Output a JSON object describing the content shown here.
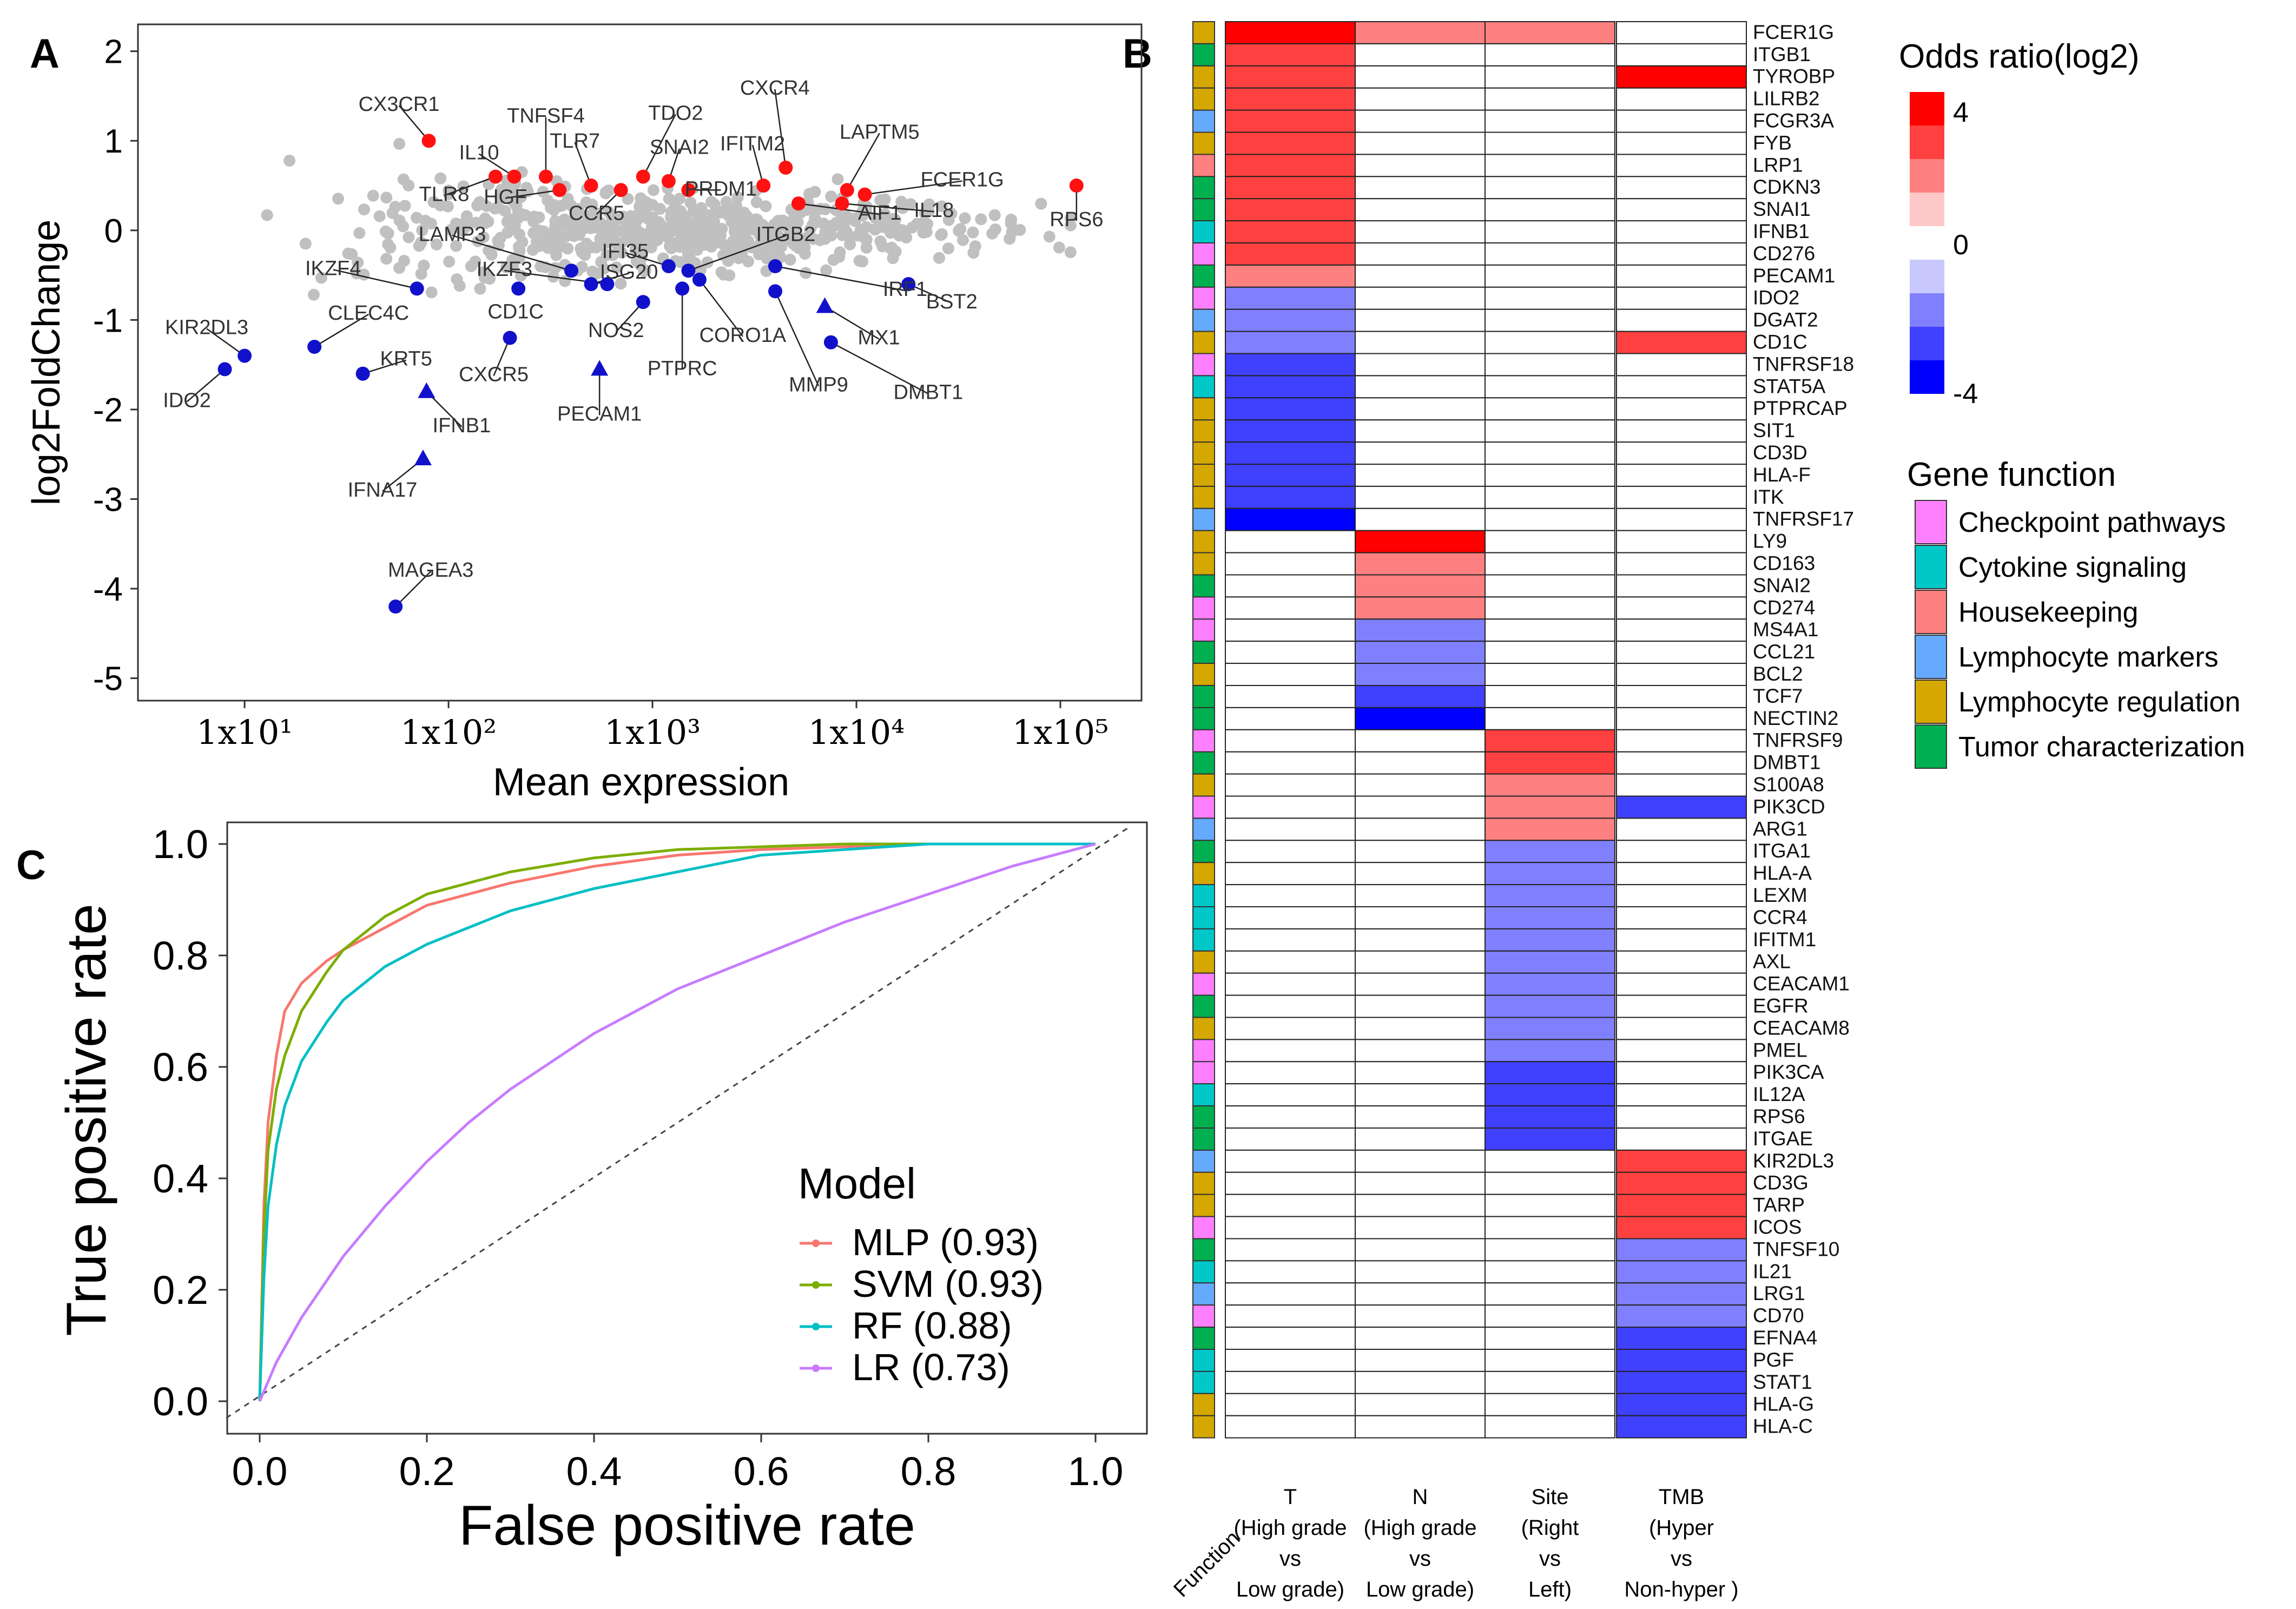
{
  "panels": {
    "A": "A",
    "B": "B",
    "C": "C"
  },
  "palette": {
    "grey": "#c0c0c0",
    "red": "#ff1111",
    "blue": "#1111cc",
    "mlp": "#f8766d",
    "svm": "#7cae00",
    "rf": "#00bfc4",
    "lr": "#c77cff",
    "checkpoint": "#ff80ff",
    "cytokine": "#00c8c8",
    "housekeeping": "#ff8080",
    "lymph_markers": "#66aaff",
    "lymph_regulation": "#d4a800",
    "tumor": "#00b050",
    "hm_pos": [
      "#ffc8c8",
      "#ff8080",
      "#ff4040",
      "#ff0000"
    ],
    "hm_neg": [
      "#c8c8ff",
      "#8080ff",
      "#4040ff",
      "#0000ff"
    ]
  },
  "chart_data": [
    {
      "id": "A",
      "type": "scatter",
      "title": "",
      "xlabel": "Mean expression",
      "ylabel": "log2FoldChange",
      "xscale": "log10",
      "xlim": [
        3,
        250000
      ],
      "ylim": [
        -5.25,
        2.3
      ],
      "xticks": [
        10,
        100,
        1000,
        10000,
        100000
      ],
      "xticklabels": [
        "1x10¹",
        "1x10²",
        "1x10³",
        "1x10⁴",
        "1x10⁵"
      ],
      "yticks": [
        2,
        1,
        0,
        -1,
        -2,
        -3,
        -4,
        -5
      ],
      "yticklabels": [
        "2",
        "1",
        "0",
        "-1",
        "-2",
        "-3",
        "-4",
        "-5"
      ],
      "background_note": "grey points: remaining genes (not significant)",
      "points": [
        {
          "label": "CX3CR1",
          "x": 80,
          "y": 1.0,
          "color": "red",
          "shape": "circle"
        },
        {
          "label": "TNFSF4",
          "x": 300,
          "y": 0.6,
          "color": "red",
          "shape": "circle"
        },
        {
          "label": "IL10",
          "x": 210,
          "y": 0.6,
          "color": "red",
          "shape": "circle"
        },
        {
          "label": "TLR8",
          "x": 170,
          "y": 0.6,
          "color": "red",
          "shape": "circle"
        },
        {
          "label": "TLR7",
          "x": 500,
          "y": 0.5,
          "color": "red",
          "shape": "circle"
        },
        {
          "label": "HGF",
          "x": 350,
          "y": 0.45,
          "color": "red",
          "shape": "circle"
        },
        {
          "label": "TDO2",
          "x": 900,
          "y": 0.6,
          "color": "red",
          "shape": "circle"
        },
        {
          "label": "SNAI2",
          "x": 1200,
          "y": 0.55,
          "color": "red",
          "shape": "circle"
        },
        {
          "label": "CCR5",
          "x": 700,
          "y": 0.45,
          "color": "red",
          "shape": "circle"
        },
        {
          "label": "PRDM1",
          "x": 1500,
          "y": 0.45,
          "color": "red",
          "shape": "circle"
        },
        {
          "label": "CXCR4",
          "x": 4500,
          "y": 0.7,
          "color": "red",
          "shape": "circle"
        },
        {
          "label": "IFITM2",
          "x": 3500,
          "y": 0.5,
          "color": "red",
          "shape": "circle"
        },
        {
          "label": "LAPTM5",
          "x": 9000,
          "y": 0.45,
          "color": "red",
          "shape": "circle"
        },
        {
          "label": "AIF1",
          "x": 5200,
          "y": 0.3,
          "color": "red",
          "shape": "circle"
        },
        {
          "label": "FCER1G",
          "x": 11000,
          "y": 0.4,
          "color": "red",
          "shape": "circle"
        },
        {
          "label": "IL18",
          "x": 8500,
          "y": 0.3,
          "color": "red",
          "shape": "circle"
        },
        {
          "label": "RPS6",
          "x": 120000,
          "y": 0.5,
          "color": "red",
          "shape": "circle"
        },
        {
          "label": "LAMP3",
          "x": 400,
          "y": -0.45,
          "color": "blue",
          "shape": "circle"
        },
        {
          "label": "IKZF3",
          "x": 600,
          "y": -0.6,
          "color": "blue",
          "shape": "circle"
        },
        {
          "label": "IFI35",
          "x": 1200,
          "y": -0.4,
          "color": "blue",
          "shape": "circle"
        },
        {
          "label": "ITGB2",
          "x": 1500,
          "y": -0.45,
          "color": "blue",
          "shape": "circle"
        },
        {
          "label": "IKZF4",
          "x": 70,
          "y": -0.65,
          "color": "blue",
          "shape": "circle"
        },
        {
          "label": "CD1C",
          "x": 220,
          "y": -0.65,
          "color": "blue",
          "shape": "circle"
        },
        {
          "label": "ISG20",
          "x": 500,
          "y": -0.6,
          "color": "blue",
          "shape": "circle"
        },
        {
          "label": "NOS2",
          "x": 900,
          "y": -0.8,
          "color": "blue",
          "shape": "circle"
        },
        {
          "label": "CORO1A",
          "x": 1700,
          "y": -0.55,
          "color": "blue",
          "shape": "circle"
        },
        {
          "label": "IRF1",
          "x": 4000,
          "y": -0.4,
          "color": "blue",
          "shape": "circle"
        },
        {
          "label": "BST2",
          "x": 18000,
          "y": -0.6,
          "color": "blue",
          "shape": "circle"
        },
        {
          "label": "PTPRC",
          "x": 1400,
          "y": -0.65,
          "color": "blue",
          "shape": "circle"
        },
        {
          "label": "MMP9",
          "x": 4000,
          "y": -0.68,
          "color": "blue",
          "shape": "circle"
        },
        {
          "label": "MX1",
          "x": 7000,
          "y": -0.85,
          "color": "blue",
          "shape": "triangle"
        },
        {
          "label": "DMBT1",
          "x": 7500,
          "y": -1.25,
          "color": "blue",
          "shape": "circle"
        },
        {
          "label": "KIR2DL3",
          "x": 10,
          "y": -1.4,
          "color": "blue",
          "shape": "circle"
        },
        {
          "label": "IDO2",
          "x": 8,
          "y": -1.55,
          "color": "blue",
          "shape": "circle"
        },
        {
          "label": "CLEC4C",
          "x": 22,
          "y": -1.3,
          "color": "blue",
          "shape": "circle"
        },
        {
          "label": "KRT5",
          "x": 38,
          "y": -1.6,
          "color": "blue",
          "shape": "circle"
        },
        {
          "label": "CXCR5",
          "x": 200,
          "y": -1.2,
          "color": "blue",
          "shape": "circle"
        },
        {
          "label": "IFNB1",
          "x": 78,
          "y": -1.8,
          "color": "blue",
          "shape": "triangle"
        },
        {
          "label": "PECAM1",
          "x": 550,
          "y": -1.55,
          "color": "blue",
          "shape": "triangle"
        },
        {
          "label": "IFNA17",
          "x": 75,
          "y": -2.55,
          "color": "blue",
          "shape": "triangle"
        },
        {
          "label": "MAGEA3",
          "x": 55,
          "y": -4.2,
          "color": "blue",
          "shape": "circle"
        }
      ]
    },
    {
      "id": "B",
      "type": "heatmap",
      "title": "",
      "value_unit": "Odds ratio (log2), binned",
      "columns": [
        "T (High grade vs Low grade)",
        "N (High grade vs Low grade)",
        "Site (Right vs Left)",
        "TMB (Hyper vs Non-hyper )"
      ],
      "column_label_lines": [
        [
          "T",
          "(High grade",
          "vs",
          "Low grade)"
        ],
        [
          "N",
          "(High grade",
          "vs",
          "Low grade)"
        ],
        [
          "Site",
          "(Right",
          "vs",
          "Left)"
        ],
        [
          "TMB",
          "(Hyper",
          "vs",
          "Non-hyper )"
        ]
      ],
      "function_column_label": "Function",
      "genes": [
        "FCER1G",
        "ITGB1",
        "TYROBP",
        "LILRB2",
        "FCGR3A",
        "FYB",
        "LRP1",
        "CDKN3",
        "SNAI1",
        "IFNB1",
        "CD276",
        "PECAM1",
        "IDO2",
        "DGAT2",
        "CD1C",
        "TNFRSF18",
        "STAT5A",
        "PTPRCAP",
        "SIT1",
        "CD3D",
        "HLA-F",
        "ITK",
        "TNFRSF17",
        "LY9",
        "CD163",
        "SNAI2",
        "CD274",
        "MS4A1",
        "CCL21",
        "BCL2",
        "TCF7",
        "NECTIN2",
        "TNFRSF9",
        "DMBT1",
        "S100A8",
        "PIK3CD",
        "ARG1",
        "ITGA1",
        "HLA-A",
        "LEXM",
        "CCR4",
        "IFITM1",
        "AXL",
        "CEACAM1",
        "EGFR",
        "CEACAM8",
        "PMEL",
        "PIK3CA",
        "IL12A",
        "RPS6",
        "ITGAE",
        "KIR2DL3",
        "CD3G",
        "TARP",
        "ICOS",
        "TNFSF10",
        "IL21",
        "LRG1",
        "CD70",
        "EFNA4",
        "PGF",
        "STAT1",
        "HLA-G",
        "HLA-C"
      ],
      "functions": [
        "LR",
        "TC",
        "LR",
        "LR",
        "LM",
        "LR",
        "HK",
        "TC",
        "TC",
        "CS",
        "CP",
        "TC",
        "CP",
        "LM",
        "LR",
        "CP",
        "CS",
        "LR",
        "LR",
        "LR",
        "LR",
        "LR",
        "LM",
        "LR",
        "LR",
        "TC",
        "CP",
        "CP",
        "TC",
        "LR",
        "TC",
        "TC",
        "CP",
        "TC",
        "LR",
        "CP",
        "LM",
        "TC",
        "LR",
        "CS",
        "CS",
        "CS",
        "LR",
        "CP",
        "TC",
        "LR",
        "CP",
        "CP",
        "CS",
        "TC",
        "TC",
        "LM",
        "LR",
        "LR",
        "CP",
        "TC",
        "CS",
        "LM",
        "CP",
        "TC",
        "CS",
        "CS",
        "LR",
        "LR"
      ],
      "function_codes": {
        "CP": "Checkpoint pathways",
        "CS": "Cytokine signaling",
        "HK": "Housekeeping",
        "LM": "Lymphocyte markers",
        "LR": "Lymphocyte regulation",
        "TC": "Tumor characterization"
      },
      "values": [
        [
          4,
          2,
          2,
          0
        ],
        [
          3,
          0,
          0,
          0
        ],
        [
          3,
          0,
          0,
          4
        ],
        [
          3,
          0,
          0,
          0
        ],
        [
          3,
          0,
          0,
          0
        ],
        [
          3,
          0,
          0,
          0
        ],
        [
          3,
          0,
          0,
          0
        ],
        [
          3,
          0,
          0,
          0
        ],
        [
          3,
          0,
          0,
          0
        ],
        [
          3,
          0,
          0,
          0
        ],
        [
          3,
          0,
          0,
          0
        ],
        [
          2,
          0,
          0,
          0
        ],
        [
          -2,
          0,
          0,
          0
        ],
        [
          -2,
          0,
          0,
          0
        ],
        [
          -2,
          0,
          0,
          3
        ],
        [
          -3,
          0,
          0,
          0
        ],
        [
          -3,
          0,
          0,
          0
        ],
        [
          -3,
          0,
          0,
          0
        ],
        [
          -3,
          0,
          0,
          0
        ],
        [
          -3,
          0,
          0,
          0
        ],
        [
          -3,
          0,
          0,
          0
        ],
        [
          -3,
          0,
          0,
          0
        ],
        [
          -4,
          0,
          0,
          0
        ],
        [
          0,
          4,
          0,
          0
        ],
        [
          0,
          2,
          0,
          0
        ],
        [
          0,
          2,
          0,
          0
        ],
        [
          0,
          2,
          0,
          0
        ],
        [
          0,
          -2,
          0,
          0
        ],
        [
          0,
          -2,
          0,
          0
        ],
        [
          0,
          -2,
          0,
          0
        ],
        [
          0,
          -3,
          0,
          0
        ],
        [
          0,
          -4,
          0,
          0
        ],
        [
          0,
          0,
          3,
          0
        ],
        [
          0,
          0,
          3,
          0
        ],
        [
          0,
          0,
          2,
          0
        ],
        [
          0,
          0,
          2,
          -3
        ],
        [
          0,
          0,
          2,
          0
        ],
        [
          0,
          0,
          -2,
          0
        ],
        [
          0,
          0,
          -2,
          0
        ],
        [
          0,
          0,
          -2,
          0
        ],
        [
          0,
          0,
          -2,
          0
        ],
        [
          0,
          0,
          -2,
          0
        ],
        [
          0,
          0,
          -2,
          0
        ],
        [
          0,
          0,
          -2,
          0
        ],
        [
          0,
          0,
          -2,
          0
        ],
        [
          0,
          0,
          -2,
          0
        ],
        [
          0,
          0,
          -2,
          0
        ],
        [
          0,
          0,
          -3,
          0
        ],
        [
          0,
          0,
          -3,
          0
        ],
        [
          0,
          0,
          -3,
          0
        ],
        [
          0,
          0,
          -3,
          0
        ],
        [
          0,
          0,
          0,
          3
        ],
        [
          0,
          0,
          0,
          3
        ],
        [
          0,
          0,
          0,
          3
        ],
        [
          0,
          0,
          0,
          3
        ],
        [
          0,
          0,
          0,
          -2
        ],
        [
          0,
          0,
          0,
          -2
        ],
        [
          0,
          0,
          0,
          -2
        ],
        [
          0,
          0,
          0,
          -2
        ],
        [
          0,
          0,
          0,
          -3
        ],
        [
          0,
          0,
          0,
          -3
        ],
        [
          0,
          0,
          0,
          -3
        ],
        [
          0,
          0,
          0,
          -3
        ],
        [
          0,
          0,
          0,
          -3
        ]
      ]
    },
    {
      "id": "C",
      "type": "line",
      "title": "",
      "xlabel": "False positive rate",
      "ylabel": "True positive rate",
      "xlim": [
        0,
        1
      ],
      "ylim": [
        0,
        1
      ],
      "xticks": [
        0,
        0.2,
        0.4,
        0.6,
        0.8,
        1
      ],
      "xticklabels": [
        "0.0",
        "0.2",
        "0.4",
        "0.6",
        "0.8",
        "1.0"
      ],
      "yticks": [
        0,
        0.2,
        0.4,
        0.6,
        0.8,
        1
      ],
      "yticklabels": [
        "0.0",
        "0.2",
        "0.4",
        "0.6",
        "0.8",
        "1.0"
      ],
      "reference_line": "diagonal dashed",
      "legend_title": "Model",
      "series": [
        {
          "name": "MLP (0.93)",
          "key": "mlp",
          "x": [
            0,
            0.005,
            0.01,
            0.02,
            0.03,
            0.05,
            0.08,
            0.1,
            0.15,
            0.2,
            0.3,
            0.4,
            0.5,
            0.6,
            0.7,
            0.8,
            0.9,
            1
          ],
          "y": [
            0,
            0.35,
            0.5,
            0.62,
            0.7,
            0.75,
            0.79,
            0.81,
            0.85,
            0.89,
            0.93,
            0.96,
            0.98,
            0.99,
            0.995,
            1,
            1,
            1
          ]
        },
        {
          "name": "SVM (0.93)",
          "key": "svm",
          "x": [
            0,
            0.005,
            0.01,
            0.02,
            0.03,
            0.05,
            0.08,
            0.1,
            0.15,
            0.2,
            0.3,
            0.4,
            0.5,
            0.6,
            0.7,
            0.8,
            0.9,
            1
          ],
          "y": [
            0,
            0.3,
            0.45,
            0.56,
            0.62,
            0.7,
            0.77,
            0.81,
            0.87,
            0.91,
            0.95,
            0.975,
            0.99,
            0.995,
            1,
            1,
            1,
            1
          ]
        },
        {
          "name": "RF (0.88)",
          "key": "rf",
          "x": [
            0,
            0.005,
            0.01,
            0.02,
            0.03,
            0.05,
            0.08,
            0.1,
            0.15,
            0.2,
            0.3,
            0.4,
            0.5,
            0.6,
            0.7,
            0.8,
            0.9,
            1
          ],
          "y": [
            0,
            0.22,
            0.35,
            0.46,
            0.53,
            0.61,
            0.68,
            0.72,
            0.78,
            0.82,
            0.88,
            0.92,
            0.95,
            0.98,
            0.99,
            1,
            1,
            1
          ]
        },
        {
          "name": "LR (0.73)",
          "key": "lr",
          "x": [
            0,
            0.02,
            0.05,
            0.1,
            0.15,
            0.2,
            0.25,
            0.3,
            0.35,
            0.4,
            0.45,
            0.5,
            0.6,
            0.7,
            0.8,
            0.9,
            1
          ],
          "y": [
            0,
            0.07,
            0.15,
            0.26,
            0.35,
            0.43,
            0.5,
            0.56,
            0.61,
            0.66,
            0.7,
            0.74,
            0.8,
            0.86,
            0.91,
            0.96,
            1
          ]
        }
      ]
    }
  ],
  "legends": {
    "odds_title": "Odds ratio(log2)",
    "odds_ticks": [
      "4",
      "0",
      "-4"
    ],
    "function_title": "Gene function",
    "function_items": [
      {
        "label": "Checkpoint pathways",
        "color_key": "checkpoint"
      },
      {
        "label": "Cytokine signaling",
        "color_key": "cytokine"
      },
      {
        "label": "Housekeeping",
        "color_key": "housekeeping"
      },
      {
        "label": "Lymphocyte markers",
        "color_key": "lymph_markers"
      },
      {
        "label": "Lymphocyte regulation",
        "color_key": "lymph_regulation"
      },
      {
        "label": "Tumor characterization",
        "color_key": "tumor"
      }
    ]
  }
}
